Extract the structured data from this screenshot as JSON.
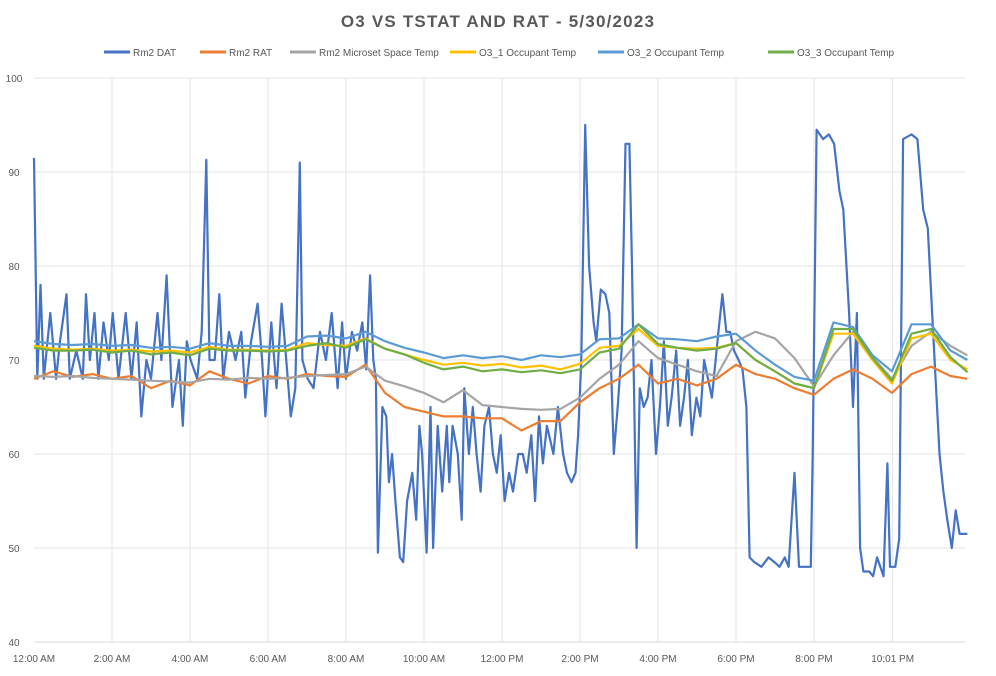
{
  "chart_data": {
    "type": "line",
    "title": "O3 VS TSTAT AND RAT - 5/30/2023",
    "xlabel": "",
    "ylabel": "",
    "ylim": [
      40,
      100
    ],
    "yticks": [
      40,
      50,
      60,
      70,
      80,
      90,
      100
    ],
    "xlim": [
      "0:00",
      "24:00"
    ],
    "xtick_times": [
      "0:00",
      "2:00",
      "4:00",
      "6:00",
      "8:00",
      "10:00",
      "12:00",
      "14:00",
      "16:00",
      "18:00",
      "20:00",
      "22:01"
    ],
    "xtick_labels": [
      "12:00 AM",
      "2:00 AM",
      "4:00 AM",
      "6:00 AM",
      "8:00 AM",
      "10:00 AM",
      "12:00 PM",
      "2:00 PM",
      "4:00 PM",
      "6:00 PM",
      "8:00 PM",
      "10:01 PM"
    ],
    "grid": true,
    "legend_position": "top",
    "x": [
      "0:00",
      "0:30",
      "1:00",
      "1:30",
      "2:00",
      "2:30",
      "3:00",
      "3:30",
      "4:00",
      "4:30",
      "5:00",
      "5:30",
      "6:00",
      "6:30",
      "7:00",
      "7:30",
      "8:00",
      "8:30",
      "9:00",
      "9:30",
      "10:00",
      "10:30",
      "11:00",
      "11:30",
      "12:00",
      "12:30",
      "13:00",
      "13:30",
      "14:00",
      "14:30",
      "15:00",
      "15:30",
      "16:00",
      "16:30",
      "17:00",
      "17:30",
      "18:00",
      "18:30",
      "19:00",
      "19:30",
      "20:00",
      "20:30",
      "21:00",
      "21:30",
      "22:00",
      "22:30",
      "23:00",
      "23:30",
      "23:56"
    ],
    "series": [
      {
        "name": "Rm2 DAT",
        "color": "#4472C4",
        "points": [
          [
            "0:00",
            91.5
          ],
          [
            "0:05",
            68
          ],
          [
            "0:10",
            78
          ],
          [
            "0:15",
            68
          ],
          [
            "0:25",
            75
          ],
          [
            "0:34",
            68
          ],
          [
            "0:40",
            72
          ],
          [
            "0:50",
            77
          ],
          [
            "0:55",
            68
          ],
          [
            "1:05",
            71
          ],
          [
            "1:15",
            68
          ],
          [
            "1:20",
            77
          ],
          [
            "1:26",
            70
          ],
          [
            "1:33",
            75
          ],
          [
            "1:39",
            68
          ],
          [
            "1:47",
            74
          ],
          [
            "1:55",
            70
          ],
          [
            "2:01",
            75
          ],
          [
            "2:10",
            68
          ],
          [
            "2:21",
            75
          ],
          [
            "2:30",
            68
          ],
          [
            "2:38",
            74
          ],
          [
            "2:45",
            64
          ],
          [
            "2:53",
            70
          ],
          [
            "3:00",
            68
          ],
          [
            "3:10",
            75
          ],
          [
            "3:16",
            70
          ],
          [
            "3:24",
            79
          ],
          [
            "3:33",
            65
          ],
          [
            "3:43",
            70
          ],
          [
            "3:49",
            63
          ],
          [
            "3:55",
            72
          ],
          [
            "4:01",
            70
          ],
          [
            "4:11",
            68
          ],
          [
            "4:18",
            73
          ],
          [
            "4:25",
            91.3
          ],
          [
            "4:30",
            70
          ],
          [
            "4:38",
            70
          ],
          [
            "4:45",
            77
          ],
          [
            "4:51",
            68
          ],
          [
            "5:00",
            73
          ],
          [
            "5:10",
            70
          ],
          [
            "5:19",
            73
          ],
          [
            "5:25",
            66
          ],
          [
            "5:34",
            72
          ],
          [
            "5:44",
            76
          ],
          [
            "5:51",
            70
          ],
          [
            "5:56",
            64
          ],
          [
            "6:05",
            74
          ],
          [
            "6:13",
            67
          ],
          [
            "6:21",
            76
          ],
          [
            "6:27",
            71
          ],
          [
            "6:35",
            64
          ],
          [
            "6:42",
            67
          ],
          [
            "6:49",
            91
          ],
          [
            "6:53",
            70
          ],
          [
            "7:01",
            68
          ],
          [
            "7:10",
            67
          ],
          [
            "7:20",
            73
          ],
          [
            "7:29",
            70
          ],
          [
            "7:38",
            75
          ],
          [
            "7:47",
            67
          ],
          [
            "7:54",
            74
          ],
          [
            "8:00",
            68
          ],
          [
            "8:09",
            73
          ],
          [
            "8:17",
            71
          ],
          [
            "8:25",
            74
          ],
          [
            "8:31",
            69
          ],
          [
            "8:37",
            79
          ],
          [
            "8:42",
            70
          ],
          [
            "8:46",
            68
          ],
          [
            "8:49",
            49.5
          ],
          [
            "8:56",
            65
          ],
          [
            "9:02",
            64
          ],
          [
            "9:06",
            57
          ],
          [
            "9:11",
            60
          ],
          [
            "9:16",
            55
          ],
          [
            "9:23",
            49
          ],
          [
            "9:28",
            48.5
          ],
          [
            "9:34",
            55
          ],
          [
            "9:42",
            58
          ],
          [
            "9:48",
            53
          ],
          [
            "9:53",
            63
          ],
          [
            "9:57",
            60
          ],
          [
            "10:04",
            49.5
          ],
          [
            "10:10",
            65
          ],
          [
            "10:14",
            50
          ],
          [
            "10:21",
            63
          ],
          [
            "10:28",
            56
          ],
          [
            "10:35",
            63
          ],
          [
            "10:39",
            57
          ],
          [
            "10:44",
            63
          ],
          [
            "10:52",
            60
          ],
          [
            "10:58",
            53
          ],
          [
            "11:02",
            67
          ],
          [
            "11:09",
            60
          ],
          [
            "11:15",
            65
          ],
          [
            "11:21",
            60
          ],
          [
            "11:27",
            56
          ],
          [
            "11:33",
            63
          ],
          [
            "11:40",
            65
          ],
          [
            "11:46",
            60
          ],
          [
            "11:52",
            58
          ],
          [
            "11:58",
            62
          ],
          [
            "12:04",
            55
          ],
          [
            "12:11",
            58
          ],
          [
            "12:17",
            56
          ],
          [
            "12:25",
            60
          ],
          [
            "12:32",
            60
          ],
          [
            "12:38",
            58
          ],
          [
            "12:45",
            62
          ],
          [
            "12:51",
            55
          ],
          [
            "12:57",
            64
          ],
          [
            "13:03",
            59
          ],
          [
            "13:09",
            63
          ],
          [
            "13:19",
            60
          ],
          [
            "13:26",
            65
          ],
          [
            "13:34",
            60
          ],
          [
            "13:40",
            58
          ],
          [
            "13:47",
            57
          ],
          [
            "13:53",
            58
          ],
          [
            "13:57",
            62
          ],
          [
            "14:02",
            70
          ],
          [
            "14:08",
            95
          ],
          [
            "14:14",
            80
          ],
          [
            "14:21",
            74
          ],
          [
            "14:25",
            72
          ],
          [
            "14:32",
            77.5
          ],
          [
            "14:39",
            77
          ],
          [
            "14:45",
            75
          ],
          [
            "14:52",
            60
          ],
          [
            "14:58",
            65
          ],
          [
            "15:04",
            71
          ],
          [
            "15:10",
            93
          ],
          [
            "15:16",
            93
          ],
          [
            "15:20",
            80
          ],
          [
            "15:27",
            50
          ],
          [
            "15:32",
            67
          ],
          [
            "15:38",
            65
          ],
          [
            "15:44",
            66
          ],
          [
            "15:50",
            70
          ],
          [
            "15:57",
            60
          ],
          [
            "16:03",
            65
          ],
          [
            "16:09",
            72
          ],
          [
            "16:15",
            63
          ],
          [
            "16:21",
            66
          ],
          [
            "16:28",
            71
          ],
          [
            "16:34",
            63
          ],
          [
            "16:40",
            66
          ],
          [
            "16:46",
            70
          ],
          [
            "16:52",
            62
          ],
          [
            "16:59",
            66
          ],
          [
            "17:05",
            64
          ],
          [
            "17:11",
            70
          ],
          [
            "17:17",
            68
          ],
          [
            "17:23",
            66
          ],
          [
            "17:33",
            73
          ],
          [
            "17:39",
            77
          ],
          [
            "17:45",
            73
          ],
          [
            "17:51",
            73
          ],
          [
            "17:57",
            71
          ],
          [
            "18:04",
            70
          ],
          [
            "18:10",
            69
          ],
          [
            "18:16",
            65
          ],
          [
            "18:21",
            49
          ],
          [
            "18:28",
            48.5
          ],
          [
            "18:39",
            48
          ],
          [
            "18:50",
            49
          ],
          [
            "18:59",
            48.5
          ],
          [
            "19:07",
            48
          ],
          [
            "19:15",
            49
          ],
          [
            "19:21",
            48
          ],
          [
            "19:30",
            58
          ],
          [
            "19:37",
            48
          ],
          [
            "19:46",
            48
          ],
          [
            "19:55",
            48
          ],
          [
            "19:58",
            60
          ],
          [
            "20:04",
            94.5
          ],
          [
            "20:14",
            93.5
          ],
          [
            "20:23",
            94
          ],
          [
            "20:31",
            93
          ],
          [
            "20:39",
            88
          ],
          [
            "20:45",
            86
          ],
          [
            "20:54",
            75
          ],
          [
            "21:00",
            65
          ],
          [
            "21:06",
            75
          ],
          [
            "21:11",
            50
          ],
          [
            "21:16",
            47.5
          ],
          [
            "21:25",
            47.5
          ],
          [
            "21:31",
            47
          ],
          [
            "21:37",
            49
          ],
          [
            "21:47",
            47
          ],
          [
            "21:53",
            59
          ],
          [
            "21:57",
            48
          ],
          [
            "22:05",
            48
          ],
          [
            "22:11",
            51
          ],
          [
            "22:17",
            93.5
          ],
          [
            "22:30",
            94
          ],
          [
            "22:39",
            93.5
          ],
          [
            "22:48",
            86
          ],
          [
            "22:55",
            84
          ],
          [
            "23:04",
            72
          ],
          [
            "23:13",
            60
          ],
          [
            "23:19",
            56
          ],
          [
            "23:25",
            53
          ],
          [
            "23:32",
            50
          ],
          [
            "23:38",
            54
          ],
          [
            "23:44",
            51.5
          ],
          [
            "23:56",
            51.5
          ]
        ]
      },
      {
        "name": "Rm2 RAT",
        "color": "#ED7D31",
        "values": [
          68.0,
          68.8,
          68.2,
          68.5,
          68.0,
          68.3,
          67.0,
          67.8,
          67.3,
          68.8,
          68.0,
          67.5,
          68.3,
          68.0,
          68.5,
          68.3,
          68.2,
          69.5,
          66.5,
          65.0,
          64.5,
          64.0,
          64.0,
          63.8,
          63.8,
          62.5,
          63.5,
          63.5,
          65.5,
          67.0,
          68.0,
          69.5,
          67.5,
          68.0,
          67.3,
          68.0,
          69.5,
          68.5,
          68.0,
          67.0,
          66.3,
          68.0,
          69.0,
          68.0,
          66.5,
          68.5,
          69.3,
          68.3,
          68.0
        ]
      },
      {
        "name": "Rm2 Microset Space Temp",
        "color": "#A5A5A5",
        "values": [
          68.3,
          68.2,
          68.3,
          68.1,
          68.0,
          67.9,
          67.8,
          67.7,
          67.6,
          68.0,
          67.9,
          68.1,
          68.0,
          68.1,
          68.3,
          68.4,
          68.5,
          69.3,
          67.8,
          67.2,
          66.5,
          65.5,
          66.8,
          65.2,
          65.0,
          64.8,
          64.7,
          64.8,
          66.0,
          68.0,
          69.5,
          72.0,
          70.2,
          69.5,
          68.8,
          68.3,
          72.0,
          73.0,
          72.3,
          70.2,
          67.2,
          70.5,
          73.0,
          70.3,
          68.0,
          71.5,
          73.0,
          71.5,
          70.5
        ]
      },
      {
        "name": "O3_1 Occupant Temp",
        "color": "#FFC000",
        "values": [
          71.5,
          71.2,
          71.1,
          71.2,
          71.0,
          71.1,
          70.9,
          71.0,
          70.8,
          71.4,
          71.1,
          71.1,
          71.0,
          71.1,
          71.8,
          71.6,
          71.5,
          72.3,
          71.2,
          70.6,
          70.0,
          69.5,
          69.7,
          69.4,
          69.6,
          69.2,
          69.4,
          69.0,
          69.6,
          71.3,
          71.5,
          73.3,
          71.5,
          71.3,
          71.2,
          71.3,
          71.8,
          70.0,
          68.8,
          67.5,
          67.0,
          72.8,
          72.8,
          70.0,
          67.5,
          72.3,
          72.8,
          70.0,
          69.0
        ]
      },
      {
        "name": "O3_2 Occupant Temp",
        "color": "#5B9BD5",
        "values": [
          72.0,
          71.7,
          71.6,
          71.7,
          71.5,
          71.6,
          71.3,
          71.4,
          71.2,
          71.8,
          71.5,
          71.5,
          71.4,
          71.5,
          72.5,
          72.6,
          72.3,
          73.0,
          72.0,
          71.3,
          70.8,
          70.2,
          70.5,
          70.2,
          70.4,
          70.0,
          70.5,
          70.3,
          70.6,
          72.2,
          72.3,
          73.8,
          72.3,
          72.2,
          72.0,
          72.5,
          72.8,
          71.0,
          69.5,
          68.2,
          67.8,
          74.0,
          73.5,
          70.5,
          68.8,
          73.8,
          73.8,
          71.0,
          70.0
        ]
      },
      {
        "name": "O3_3 Occupant Temp",
        "color": "#70AD47",
        "values": [
          71.3,
          71.0,
          71.0,
          71.1,
          70.8,
          71.0,
          70.6,
          70.8,
          70.5,
          71.2,
          71.0,
          71.0,
          70.9,
          71.0,
          71.5,
          71.8,
          71.3,
          72.2,
          71.2,
          70.6,
          69.7,
          69.0,
          69.3,
          68.8,
          69.0,
          68.7,
          68.9,
          68.6,
          69.0,
          70.8,
          71.2,
          73.8,
          71.7,
          71.3,
          71.0,
          71.2,
          71.8,
          70.0,
          68.8,
          67.5,
          67.0,
          73.3,
          73.3,
          70.2,
          67.8,
          72.8,
          73.3,
          70.3,
          68.7
        ]
      }
    ]
  }
}
